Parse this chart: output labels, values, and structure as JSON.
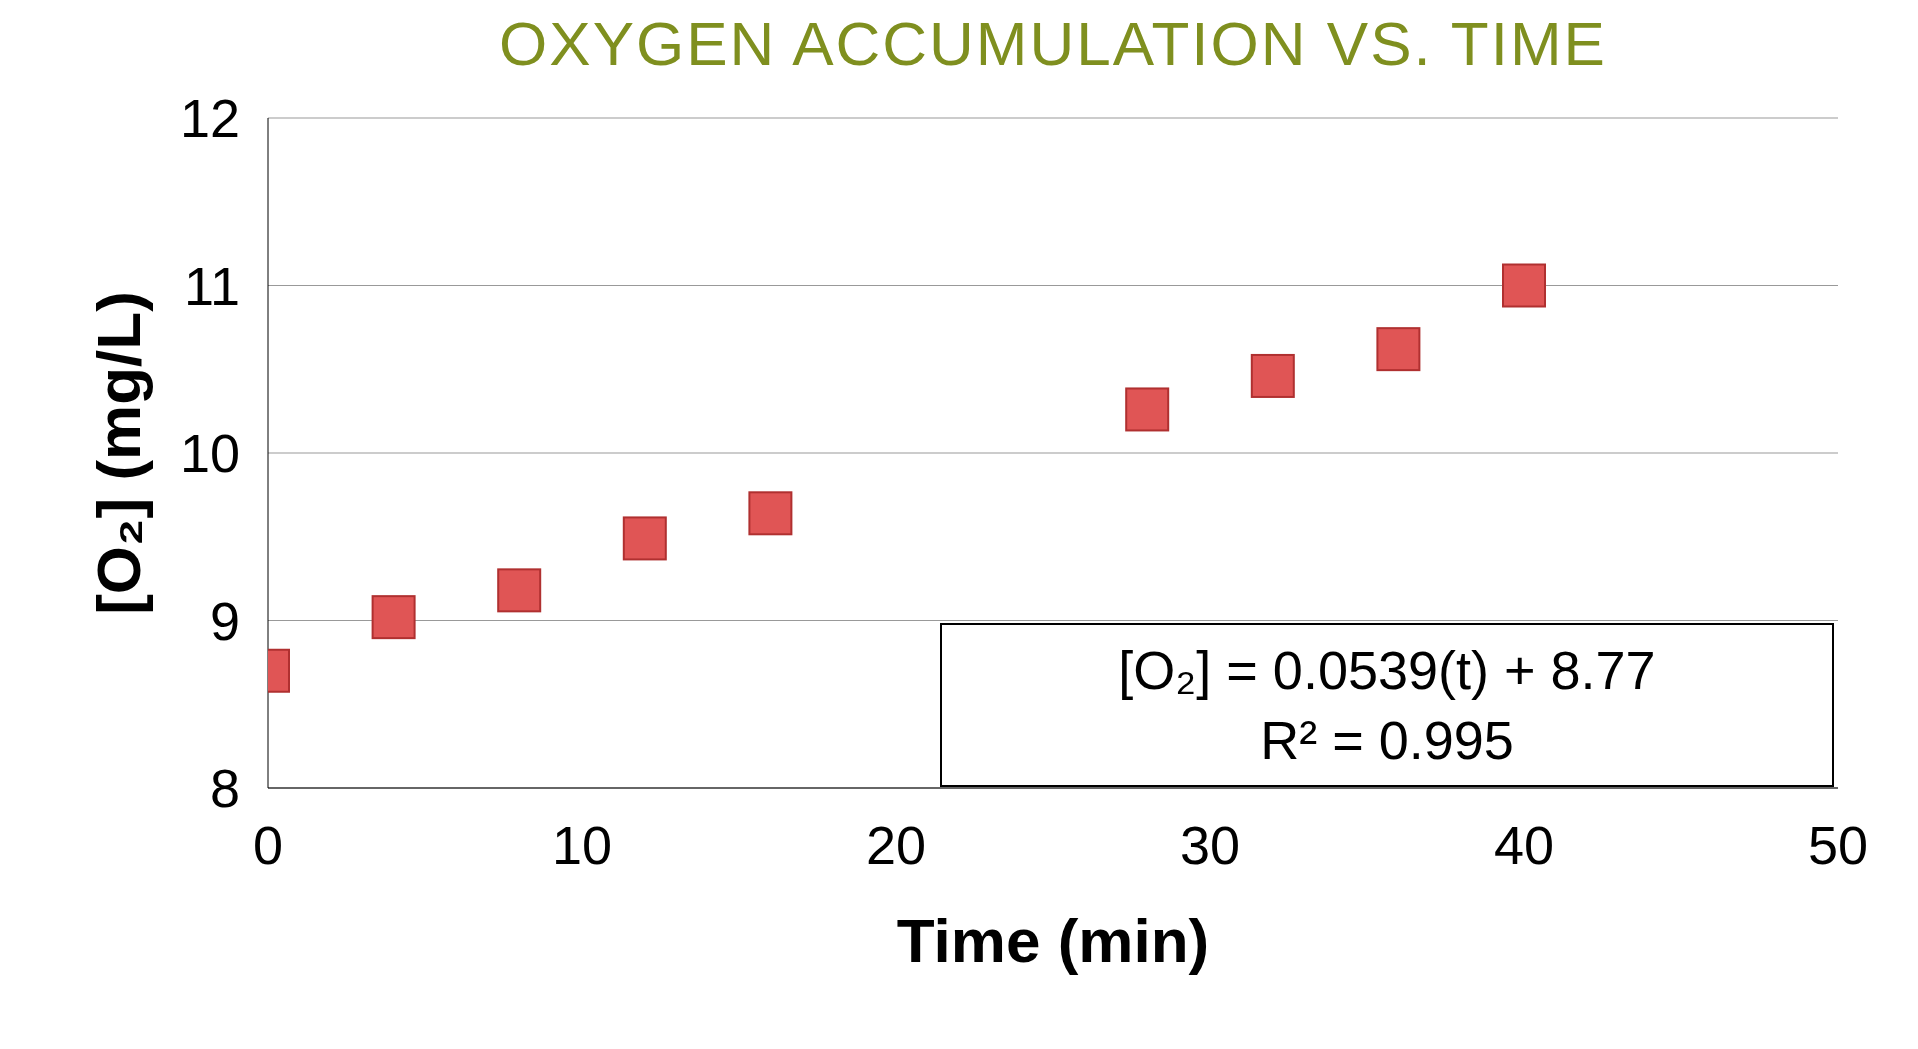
{
  "chart_data": {
    "type": "scatter",
    "title": "OXYGEN ACCUMULATION VS. TIME",
    "xlabel": "Time (min)",
    "ylabel": "[O₂] (mg/L)",
    "x": [
      0,
      4,
      8,
      12,
      16,
      28,
      32,
      36,
      40
    ],
    "series": [
      {
        "color": "#e05555",
        "values": [
          8.7,
          9.02,
          9.18,
          9.49,
          9.64,
          10.26,
          10.46,
          10.62,
          11.0
        ]
      }
    ],
    "xlim": [
      0,
      50
    ],
    "xticks": [
      0,
      10,
      20,
      30,
      40,
      50
    ],
    "ylim": [
      8,
      12
    ],
    "yticks": [
      8,
      9,
      10,
      11,
      12
    ],
    "grid": "y",
    "marker": "square",
    "legend": false,
    "annotations": [
      "[O₂] = 0.0539(t) + 8.77",
      "R² = 0.995"
    ]
  }
}
